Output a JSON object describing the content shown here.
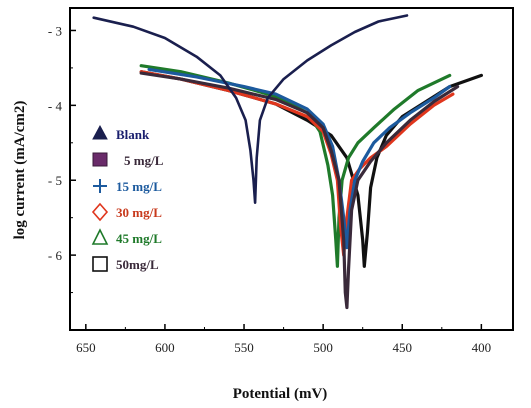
{
  "chart_data": {
    "type": "line",
    "xlabel": "Potential (mV)",
    "ylabel": "log current (mA/cm2)",
    "xlim": [
      660,
      380
    ],
    "ylim": [
      -7.0,
      -2.7
    ],
    "x_ticks": [
      650,
      600,
      550,
      500,
      450,
      400
    ],
    "y_ticks": [
      -3,
      -4,
      -5,
      -6
    ],
    "x_tick_labels": [
      "650",
      "600",
      "550",
      "500",
      "450",
      "400"
    ],
    "y_tick_labels": [
      "- 3",
      "- 4",
      "- 5",
      "- 6"
    ],
    "grid": false,
    "legend_position": "left",
    "series": [
      {
        "name": "Blank",
        "color": "#1a1f4e",
        "marker": "triangle",
        "x": [
          645,
          620,
          600,
          580,
          565,
          555,
          549,
          546,
          544,
          543,
          542,
          540,
          535,
          525,
          510,
          495,
          480,
          465,
          447
        ],
        "y": [
          -2.83,
          -2.95,
          -3.1,
          -3.35,
          -3.6,
          -3.9,
          -4.2,
          -4.6,
          -5.0,
          -5.3,
          -4.7,
          -4.2,
          -3.9,
          -3.65,
          -3.4,
          -3.2,
          -3.02,
          -2.88,
          -2.8
        ]
      },
      {
        "name": "5 mg/L",
        "color": "#3a2a3a",
        "marker": "square",
        "x": [
          615,
          590,
          560,
          530,
          510,
          500,
          495,
          490,
          487,
          486,
          485,
          484,
          482,
          478,
          470,
          460,
          445,
          430,
          415
        ],
        "y": [
          -3.57,
          -3.65,
          -3.77,
          -3.92,
          -4.1,
          -4.3,
          -4.6,
          -5.0,
          -5.8,
          -6.5,
          -6.7,
          -6.2,
          -5.4,
          -5.0,
          -4.75,
          -4.5,
          -4.2,
          -3.95,
          -3.75
        ]
      },
      {
        "name": "15 mg/L",
        "color": "#1c5a9e",
        "marker": "plus",
        "x": [
          610,
          580,
          550,
          530,
          510,
          500,
          494,
          490,
          487,
          485,
          483,
          480,
          475,
          468,
          458,
          445,
          430,
          420
        ],
        "y": [
          -3.52,
          -3.62,
          -3.75,
          -3.85,
          -4.05,
          -4.25,
          -4.55,
          -5.0,
          -5.5,
          -5.9,
          -5.4,
          -5.0,
          -4.75,
          -4.5,
          -4.3,
          -4.1,
          -3.9,
          -3.75
        ]
      },
      {
        "name": "30 mg/L",
        "color": "#e0361d",
        "marker": "diamond",
        "x": [
          615,
          590,
          560,
          530,
          510,
          500,
          495,
          491,
          489,
          487,
          485,
          482,
          477,
          470,
          460,
          445,
          430,
          418
        ],
        "y": [
          -3.55,
          -3.65,
          -3.8,
          -3.98,
          -4.15,
          -4.35,
          -4.65,
          -5.0,
          -5.6,
          -6.0,
          -5.5,
          -5.0,
          -4.85,
          -4.7,
          -4.55,
          -4.25,
          -4.0,
          -3.85
        ]
      },
      {
        "name": "45 mg/L",
        "color": "#1f7a2a",
        "marker": "triangle-open",
        "x": [
          615,
          590,
          560,
          530,
          510,
          502,
          497,
          494,
          492,
          491,
          490,
          488,
          484,
          478,
          468,
          455,
          440,
          420
        ],
        "y": [
          -3.47,
          -3.55,
          -3.7,
          -3.88,
          -4.1,
          -4.35,
          -4.8,
          -5.2,
          -5.8,
          -6.15,
          -5.5,
          -5.0,
          -4.7,
          -4.5,
          -4.3,
          -4.05,
          -3.8,
          -3.6
        ]
      },
      {
        "name": "50mg/L",
        "color": "#111111",
        "marker": "square-open",
        "x": [
          615,
          590,
          560,
          530,
          510,
          495,
          485,
          478,
          475,
          474,
          472,
          470,
          466,
          460,
          450,
          435,
          420,
          400
        ],
        "y": [
          -3.55,
          -3.65,
          -3.8,
          -3.98,
          -4.2,
          -4.4,
          -4.7,
          -5.2,
          -5.8,
          -6.15,
          -5.7,
          -5.1,
          -4.7,
          -4.4,
          -4.15,
          -3.95,
          -3.75,
          -3.6
        ]
      }
    ]
  }
}
